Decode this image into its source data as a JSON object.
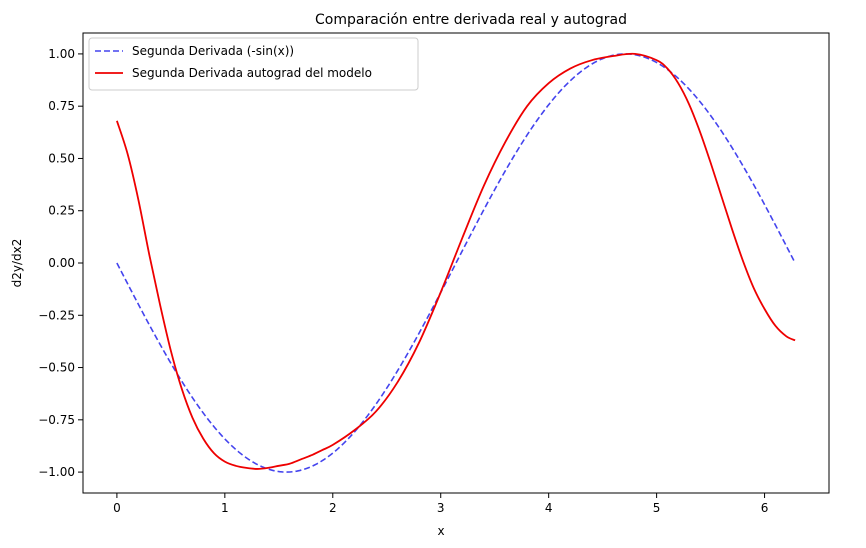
{
  "chart_data": {
    "type": "line",
    "title": "Comparación entre derivada real y autograd",
    "xlabel": "x",
    "ylabel": "d2y/dx2",
    "xlim": [
      -0.314,
      6.597
    ],
    "ylim": [
      -1.1,
      1.1
    ],
    "xticks": [
      0,
      1,
      2,
      3,
      4,
      5,
      6
    ],
    "xtick_labels": [
      "0",
      "1",
      "2",
      "3",
      "4",
      "5",
      "6"
    ],
    "yticks": [
      -1.0,
      -0.75,
      -0.5,
      -0.25,
      0.0,
      0.25,
      0.5,
      0.75,
      1.0
    ],
    "ytick_labels": [
      "−1.00",
      "−0.75",
      "−0.50",
      "−0.25",
      "0.00",
      "0.25",
      "0.50",
      "0.75",
      "1.00"
    ],
    "grid": false,
    "legend_position": "top-left",
    "series": [
      {
        "name": "Segunda Derivada (-sin(x))",
        "color": "#4444ee",
        "style": "dashed",
        "function": "-sin(x)",
        "x_range": [
          0,
          6.283
        ]
      },
      {
        "name": "Segunda Derivada autograd del modelo",
        "color": "#ee0000",
        "style": "solid",
        "x": [
          0.0,
          0.1,
          0.2,
          0.3,
          0.4,
          0.5,
          0.6,
          0.7,
          0.8,
          0.9,
          1.0,
          1.1,
          1.2,
          1.3,
          1.4,
          1.5,
          1.6,
          1.7,
          1.8,
          1.9,
          2.0,
          2.2,
          2.4,
          2.6,
          2.8,
          3.0,
          3.2,
          3.4,
          3.6,
          3.8,
          4.0,
          4.2,
          4.4,
          4.6,
          4.8,
          5.0,
          5.1,
          5.2,
          5.3,
          5.4,
          5.5,
          5.6,
          5.7,
          5.8,
          5.9,
          6.0,
          6.1,
          6.2,
          6.283
        ],
        "y": [
          0.68,
          0.52,
          0.3,
          0.04,
          -0.2,
          -0.42,
          -0.6,
          -0.74,
          -0.84,
          -0.91,
          -0.95,
          -0.97,
          -0.98,
          -0.985,
          -0.98,
          -0.97,
          -0.96,
          -0.94,
          -0.92,
          -0.895,
          -0.87,
          -0.8,
          -0.71,
          -0.57,
          -0.38,
          -0.14,
          0.12,
          0.37,
          0.58,
          0.75,
          0.86,
          0.93,
          0.97,
          0.99,
          1.0,
          0.97,
          0.93,
          0.86,
          0.76,
          0.63,
          0.48,
          0.32,
          0.16,
          0.01,
          -0.12,
          -0.22,
          -0.3,
          -0.35,
          -0.37
        ]
      }
    ]
  }
}
